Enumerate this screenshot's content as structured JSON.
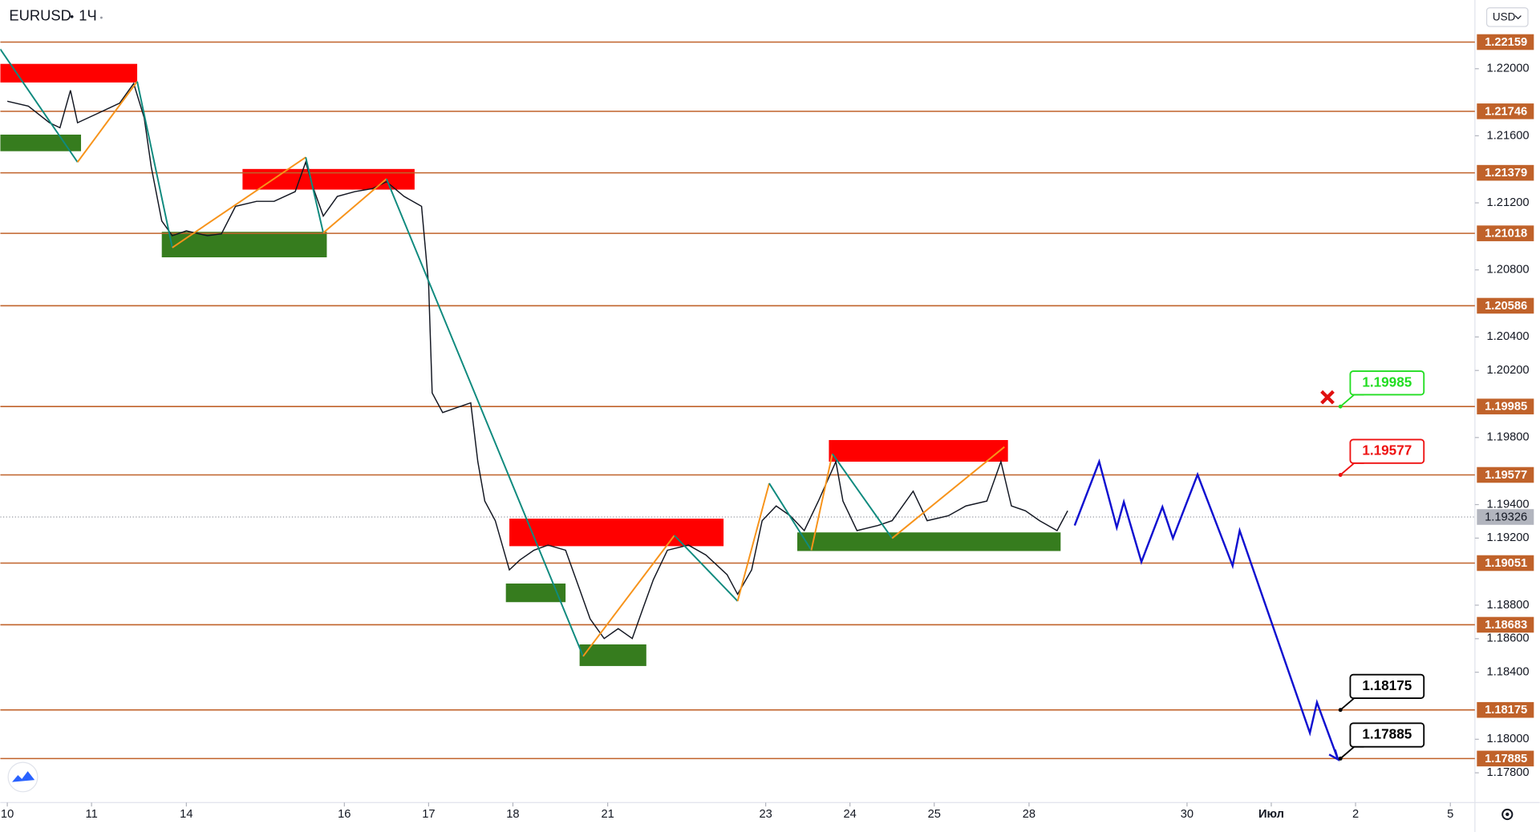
{
  "chart_data": {
    "type": "line",
    "title": "EURUSD",
    "timeframe": "1Ч",
    "currency": "USD",
    "xlim": [
      -2,
      418
    ],
    "ylim": [
      1.1764,
      1.2241
    ],
    "xticks": [
      {
        "value": 0,
        "label": "10"
      },
      {
        "value": 24,
        "label": "11"
      },
      {
        "value": 51,
        "label": "14"
      },
      {
        "value": 96,
        "label": "16"
      },
      {
        "value": 120,
        "label": "17"
      },
      {
        "value": 144,
        "label": "18"
      },
      {
        "value": 171,
        "label": "21"
      },
      {
        "value": 216,
        "label": "23"
      },
      {
        "value": 240,
        "label": "24"
      },
      {
        "value": 264,
        "label": "25"
      },
      {
        "value": 291,
        "label": "28"
      },
      {
        "value": 336,
        "label": "30"
      },
      {
        "value": 360,
        "label": "Июл"
      },
      {
        "value": 384,
        "label": "2"
      },
      {
        "value": 411,
        "label": "5"
      }
    ],
    "yticks": [
      {
        "value": 1.22,
        "label": "1.22000"
      },
      {
        "value": 1.216,
        "label": "1.21600"
      },
      {
        "value": 1.212,
        "label": "1.21200"
      },
      {
        "value": 1.208,
        "label": "1.20800"
      },
      {
        "value": 1.204,
        "label": "1.20400"
      },
      {
        "value": 1.202,
        "label": "1.20200"
      },
      {
        "value": 1.198,
        "label": "1.19800"
      },
      {
        "value": 1.194,
        "label": "1.19400"
      },
      {
        "value": 1.192,
        "label": "1.19200"
      },
      {
        "value": 1.188,
        "label": "1.18800"
      },
      {
        "value": 1.186,
        "label": "1.18600"
      },
      {
        "value": 1.184,
        "label": "1.18400"
      },
      {
        "value": 1.18,
        "label": "1.18000"
      },
      {
        "value": 1.178,
        "label": "1.17800"
      }
    ],
    "level_color": "#c0622a",
    "levels": [
      {
        "value": 1.22159,
        "label": "1.22159"
      },
      {
        "value": 1.21746,
        "label": "1.21746"
      },
      {
        "value": 1.21379,
        "label": "1.21379"
      },
      {
        "value": 1.21018,
        "label": "1.21018"
      },
      {
        "value": 1.20586,
        "label": "1.20586"
      },
      {
        "value": 1.19985,
        "label": "1.19985"
      },
      {
        "value": 1.19577,
        "label": "1.19577"
      },
      {
        "value": 1.19051,
        "label": "1.19051"
      },
      {
        "value": 1.18683,
        "label": "1.18683"
      },
      {
        "value": 1.18175,
        "label": "1.18175"
      },
      {
        "value": 1.17885,
        "label": "1.17885"
      }
    ],
    "current_price": {
      "value": 1.19326,
      "label": "1.19326"
    },
    "price": {
      "color": "#131722",
      "x": [
        0,
        6,
        12,
        15,
        18,
        20,
        26,
        32,
        36,
        39,
        41,
        44,
        47,
        51,
        57,
        61,
        65,
        71,
        76,
        82,
        85,
        87,
        90,
        94,
        99,
        104,
        108,
        113,
        118,
        120,
        121,
        124,
        128,
        132,
        134,
        136,
        139,
        143,
        146,
        150,
        154,
        159,
        163,
        166,
        170,
        174,
        178,
        181,
        184,
        188,
        194,
        199,
        205,
        208,
        212,
        215,
        219,
        223,
        227,
        231,
        236,
        238,
        242,
        248,
        252,
        258,
        262,
        268,
        273,
        279,
        283,
        286,
        290,
        294,
        299,
        302
      ],
      "values": [
        1.21806,
        1.21777,
        1.21678,
        1.21648,
        1.21871,
        1.21678,
        1.21736,
        1.21795,
        1.21912,
        1.21707,
        1.21414,
        1.21092,
        1.21004,
        1.21033,
        1.21004,
        1.21015,
        1.21179,
        1.21209,
        1.21209,
        1.21267,
        1.21443,
        1.21297,
        1.21121,
        1.21238,
        1.21267,
        1.21285,
        1.21326,
        1.21238,
        1.21179,
        1.20711,
        1.20066,
        1.19949,
        1.19978,
        1.20007,
        1.19656,
        1.19421,
        1.19304,
        1.19011,
        1.1907,
        1.19128,
        1.19158,
        1.19128,
        1.18894,
        1.18718,
        1.18601,
        1.1866,
        1.18601,
        1.18777,
        1.18952,
        1.19128,
        1.19158,
        1.19099,
        1.18982,
        1.18865,
        1.19011,
        1.19304,
        1.19392,
        1.19333,
        1.19245,
        1.19421,
        1.19656,
        1.19421,
        1.19245,
        1.19275,
        1.19304,
        1.1948,
        1.19304,
        1.19333,
        1.19392,
        1.19421,
        1.19656,
        1.19392,
        1.19363,
        1.19304,
        1.19245,
        1.19363
      ]
    },
    "zones": [
      {
        "x0": -2,
        "x1": 37,
        "top": 1.22029,
        "bottom": 1.21918,
        "color": "#ff0000"
      },
      {
        "x0": -2,
        "x1": 21,
        "top": 1.21607,
        "bottom": 1.21508,
        "color": "#367c1e"
      },
      {
        "x0": 67,
        "x1": 116,
        "top": 1.21402,
        "bottom": 1.21279,
        "color": "#ff0000"
      },
      {
        "x0": 44,
        "x1": 91,
        "top": 1.21027,
        "bottom": 1.20875,
        "color": "#367c1e"
      },
      {
        "x0": 143,
        "x1": 204,
        "top": 1.19316,
        "bottom": 1.19152,
        "color": "#ff0000"
      },
      {
        "x0": 142,
        "x1": 159,
        "top": 1.18929,
        "bottom": 1.18818,
        "color": "#367c1e"
      },
      {
        "x0": 163,
        "x1": 182,
        "top": 1.18566,
        "bottom": 1.18437,
        "color": "#367c1e"
      },
      {
        "x0": 234,
        "x1": 285,
        "top": 1.19785,
        "bottom": 1.19656,
        "color": "#ff0000"
      },
      {
        "x0": 225,
        "x1": 300,
        "top": 1.19234,
        "bottom": 1.19123,
        "color": "#367c1e"
      }
    ],
    "zigzag": {
      "up_color": "#f7931a",
      "down_color": "#0f8a7e",
      "x": [
        -2,
        20,
        37,
        47,
        85,
        90,
        108,
        164,
        190,
        208,
        217,
        229,
        235,
        252,
        284
      ],
      "y": [
        1.22117,
        1.21443,
        1.21924,
        1.20933,
        1.21472,
        1.21021,
        1.21343,
        1.18495,
        1.19216,
        1.18824,
        1.19527,
        1.19128,
        1.19703,
        1.19199,
        1.19744
      ]
    },
    "forecast": {
      "color": "#1010d0",
      "x": [
        304,
        311,
        316,
        318,
        323,
        329,
        332,
        339,
        349,
        351,
        371,
        373,
        379
      ],
      "y": [
        1.19275,
        1.19656,
        1.19263,
        1.19416,
        1.19058,
        1.19386,
        1.19199,
        1.19579,
        1.19035,
        1.19245,
        1.18038,
        1.1822,
        1.1788
      ]
    },
    "cancel_marker": {
      "x": 376,
      "y": 1.2004,
      "color": "#e01010"
    },
    "callouts": [
      {
        "value": 1.19985,
        "label": "1.19985",
        "color": "#22dd22"
      },
      {
        "value": 1.19577,
        "label": "1.19577",
        "color": "#ee1111"
      },
      {
        "value": 1.18175,
        "label": "1.18175",
        "color": "#000000"
      },
      {
        "value": 1.17885,
        "label": "1.17885",
        "color": "#000000"
      }
    ]
  }
}
